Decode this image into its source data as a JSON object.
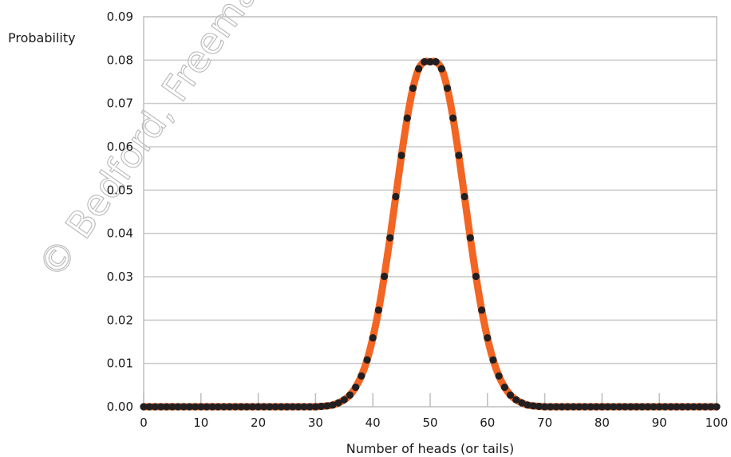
{
  "chart_data": {
    "type": "line",
    "title": "",
    "xlabel": "Number of heads (or tails)",
    "ylabel": "Probability",
    "xlim": [
      0,
      100
    ],
    "ylim": [
      0,
      0.09
    ],
    "xticks": [
      0,
      10,
      20,
      30,
      40,
      50,
      60,
      70,
      80,
      90,
      100
    ],
    "yticks": [
      "0.00",
      "0.01",
      "0.02",
      "0.03",
      "0.04",
      "0.05",
      "0.06",
      "0.07",
      "0.08",
      "0.09"
    ],
    "grid": "horizontal",
    "colors": {
      "curve": "#F26522",
      "points": "#231F20",
      "grid": "#C8C8C8"
    },
    "series": [
      {
        "x": [
          0,
          1,
          2,
          3,
          4,
          5,
          6,
          7,
          8,
          9,
          10,
          11,
          12,
          13,
          14,
          15,
          16,
          17,
          18,
          19,
          20,
          21,
          22,
          23,
          24,
          25,
          26,
          27,
          28,
          29,
          30,
          31,
          32,
          33,
          34,
          35,
          36,
          37,
          38,
          39,
          40,
          41,
          42,
          43,
          44,
          45,
          46,
          47,
          48,
          49,
          50,
          51,
          52,
          53,
          54,
          55,
          56,
          57,
          58,
          59,
          60,
          61,
          62,
          63,
          64,
          65,
          66,
          67,
          68,
          69,
          70,
          71,
          72,
          73,
          74,
          75,
          76,
          77,
          78,
          79,
          80,
          81,
          82,
          83,
          84,
          85,
          86,
          87,
          88,
          89,
          90,
          91,
          92,
          93,
          94,
          95,
          96,
          97,
          98,
          99,
          100
        ],
        "values": [
          0,
          0,
          0,
          0,
          0,
          0,
          0,
          0,
          0,
          0,
          0,
          0,
          0,
          0,
          0,
          0,
          0,
          0,
          0,
          0,
          0,
          0,
          0,
          0,
          0,
          0,
          0,
          0,
          0,
          0,
          0,
          0.0001,
          0.0002,
          0.0004,
          0.0009,
          0.0016,
          0.0027,
          0.0045,
          0.0071,
          0.0108,
          0.0159,
          0.0223,
          0.0301,
          0.039,
          0.0485,
          0.058,
          0.0666,
          0.0735,
          0.078,
          0.0796,
          0.0796,
          0.0796,
          0.078,
          0.0735,
          0.0666,
          0.058,
          0.0485,
          0.039,
          0.0301,
          0.0223,
          0.0159,
          0.0108,
          0.0071,
          0.0045,
          0.0027,
          0.0016,
          0.0009,
          0.0004,
          0.0002,
          0.0001,
          0,
          0,
          0,
          0,
          0,
          0,
          0,
          0,
          0,
          0,
          0,
          0,
          0,
          0,
          0,
          0,
          0,
          0,
          0,
          0,
          0,
          0,
          0,
          0,
          0,
          0,
          0,
          0,
          0,
          0,
          0
        ]
      }
    ]
  },
  "watermark": "© Bedford, Freeman & Worth"
}
